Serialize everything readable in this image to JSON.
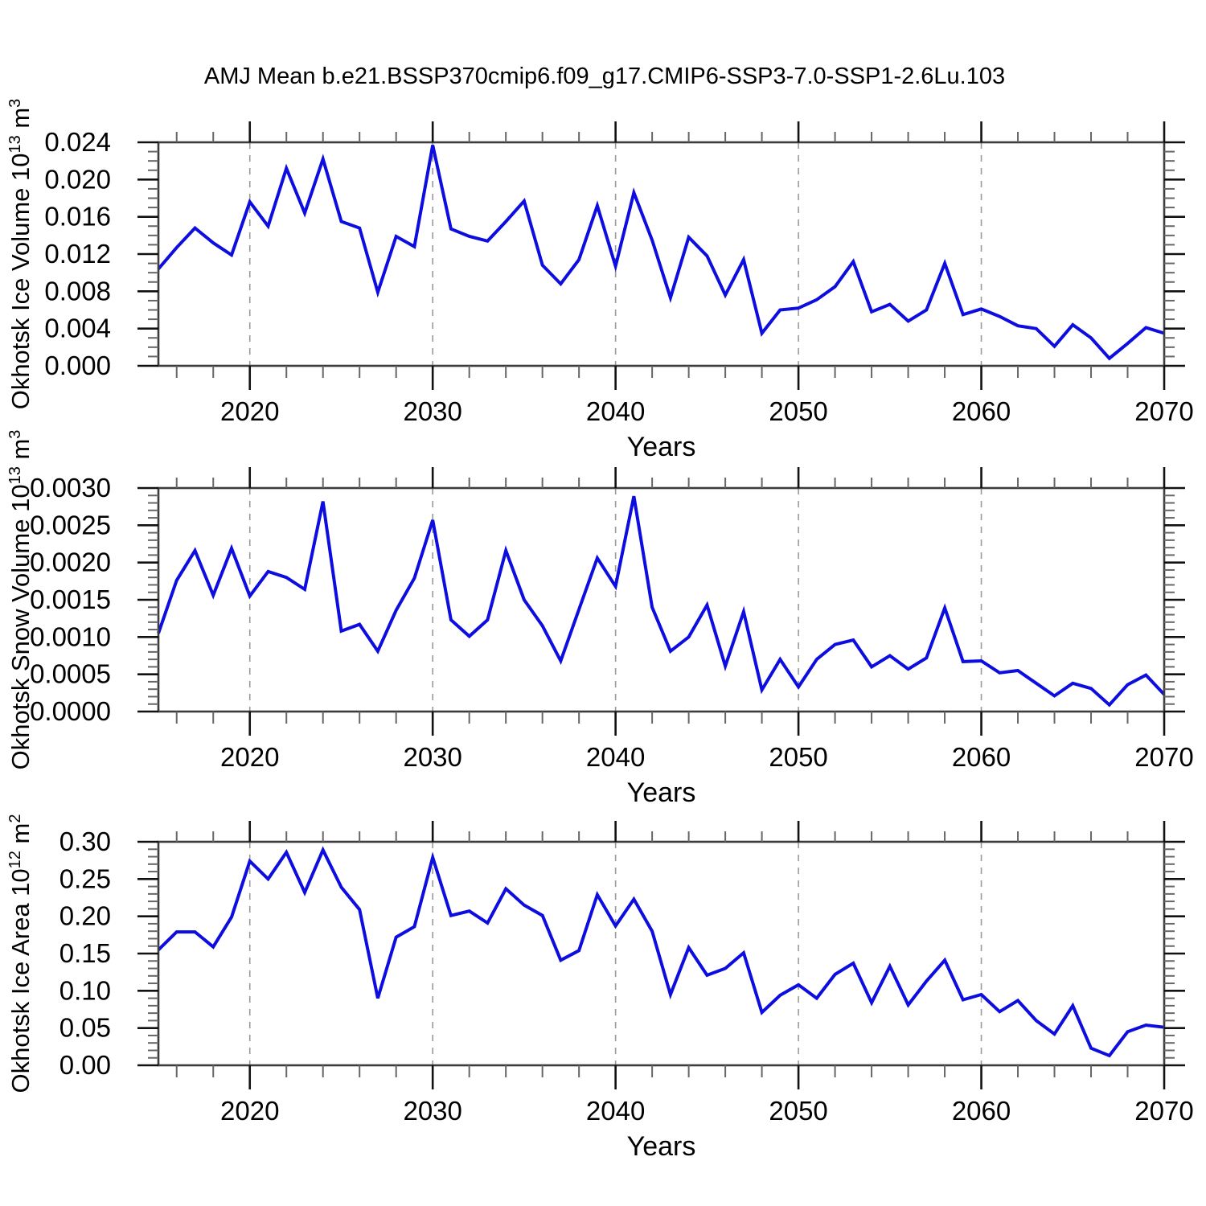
{
  "title": "AMJ Mean b.e21.BSSP370cmip6.f09_g17.CMIP6-SSP3-7.0-SSP1-2.6Lu.103",
  "colors": {
    "line": "#0d0de0",
    "frame": "#3c3c3c",
    "tick_major": "#111111",
    "tick_minor": "#666666",
    "grid": "#999999",
    "text": "#000000"
  },
  "chart_data": [
    {
      "type": "line",
      "ylabel": "Okhotsk Ice Volume 10^13^ m^3^",
      "xlabel": "Years",
      "x_start": 2015,
      "xlim": [
        2015,
        2070
      ],
      "ylim": [
        0,
        0.024
      ],
      "ytick_step": 0.004,
      "ytick_decimals": 3,
      "yminor_step": 0.001,
      "xticks": [
        2020,
        2030,
        2040,
        2050,
        2060,
        2070
      ],
      "xminor_step": 2,
      "grid_x": [
        2020,
        2030,
        2040,
        2050,
        2060
      ],
      "grid_on": true,
      "legend": "none",
      "values": [
        0.0104,
        0.0127,
        0.0148,
        0.0132,
        0.0119,
        0.0176,
        0.015,
        0.0212,
        0.0164,
        0.0222,
        0.0155,
        0.0148,
        0.0079,
        0.0139,
        0.0128,
        0.0237,
        0.0147,
        0.0139,
        0.0134,
        0.0155,
        0.0177,
        0.0108,
        0.0088,
        0.0114,
        0.0172,
        0.0107,
        0.0186,
        0.0135,
        0.0073,
        0.0138,
        0.0118,
        0.0076,
        0.0114,
        0.0035,
        0.006,
        0.0062,
        0.0071,
        0.0085,
        0.0112,
        0.0058,
        0.0066,
        0.0048,
        0.006,
        0.011,
        0.0055,
        0.0061,
        0.0053,
        0.0043,
        0.004,
        0.0021,
        0.0044,
        0.003,
        0.0008,
        0.0024,
        0.0041,
        0.0035
      ]
    },
    {
      "type": "line",
      "ylabel": "Okhotsk Snow Volume 10^13^ m^3^",
      "xlabel": "Years",
      "x_start": 2015,
      "xlim": [
        2015,
        2070
      ],
      "ylim": [
        0,
        0.003
      ],
      "ytick_step": 0.0005,
      "ytick_decimals": 4,
      "yminor_step": 0.0001,
      "xticks": [
        2020,
        2030,
        2040,
        2050,
        2060,
        2070
      ],
      "xminor_step": 2,
      "grid_x": [
        2020,
        2030,
        2040,
        2050,
        2060
      ],
      "grid_on": true,
      "legend": "none",
      "values": [
        0.00105,
        0.00176,
        0.00216,
        0.00156,
        0.00219,
        0.00155,
        0.00188,
        0.0018,
        0.00164,
        0.00282,
        0.00108,
        0.00117,
        0.00081,
        0.00136,
        0.00179,
        0.00257,
        0.00123,
        0.00101,
        0.00123,
        0.00216,
        0.0015,
        0.00115,
        0.00068,
        0.00137,
        0.00206,
        0.00168,
        0.00289,
        0.0014,
        0.00081,
        0.001,
        0.00143,
        0.00061,
        0.00134,
        0.00029,
        0.0007,
        0.00033,
        0.0007,
        0.0009,
        0.00096,
        0.0006,
        0.00075,
        0.00057,
        0.00072,
        0.00139,
        0.00067,
        0.00068,
        0.00052,
        0.00055,
        0.00038,
        0.00021,
        0.00038,
        0.00031,
        9e-05,
        0.00036,
        0.00049,
        0.00023
      ]
    },
    {
      "type": "line",
      "ylabel": "Okhotsk Ice Area 10^12^ m^2^",
      "xlabel": "Years",
      "x_start": 2015,
      "xlim": [
        2015,
        2070
      ],
      "ylim": [
        0,
        0.3
      ],
      "ytick_step": 0.05,
      "ytick_decimals": 2,
      "yminor_step": 0.01,
      "xticks": [
        2020,
        2030,
        2040,
        2050,
        2060,
        2070
      ],
      "xminor_step": 2,
      "grid_x": [
        2020,
        2030,
        2040,
        2050,
        2060
      ],
      "grid_on": true,
      "legend": "none",
      "values": [
        0.155,
        0.179,
        0.179,
        0.159,
        0.199,
        0.274,
        0.25,
        0.286,
        0.232,
        0.289,
        0.239,
        0.209,
        0.09,
        0.172,
        0.186,
        0.279,
        0.201,
        0.207,
        0.191,
        0.237,
        0.215,
        0.201,
        0.141,
        0.154,
        0.229,
        0.187,
        0.223,
        0.18,
        0.095,
        0.158,
        0.121,
        0.13,
        0.151,
        0.071,
        0.094,
        0.108,
        0.09,
        0.122,
        0.137,
        0.084,
        0.133,
        0.081,
        0.113,
        0.141,
        0.088,
        0.095,
        0.072,
        0.087,
        0.06,
        0.042,
        0.08,
        0.023,
        0.013,
        0.045,
        0.054,
        0.051
      ]
    }
  ]
}
